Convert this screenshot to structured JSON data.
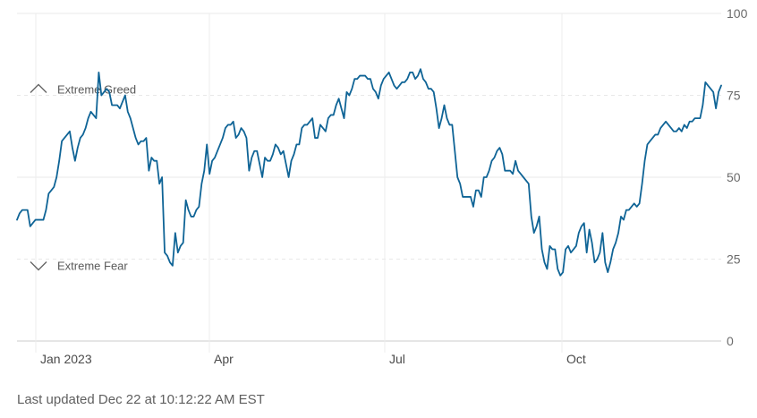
{
  "chart_data": {
    "type": "line",
    "ylim": [
      0,
      100
    ],
    "y_ticks": [
      0,
      25,
      50,
      75,
      100
    ],
    "x_tick_labels": [
      "Jan 2023",
      "Apr",
      "Jul",
      "Oct"
    ],
    "grid": true,
    "line_color": "#0f6496",
    "annotations": [
      {
        "label": "Extreme Greed",
        "y": 75,
        "icon": "chevron-up-icon"
      },
      {
        "label": "Extreme Fear",
        "y": 25,
        "icon": "chevron-down-icon"
      }
    ],
    "series": [
      {
        "values": [
          37,
          39,
          40,
          40,
          40,
          35,
          36,
          37,
          37,
          37,
          37,
          40,
          45,
          46,
          47,
          50,
          55,
          61,
          62,
          63,
          64,
          59,
          55,
          59,
          62,
          63,
          65,
          68,
          70,
          69,
          68,
          82,
          75,
          76,
          77,
          76,
          72,
          72,
          72,
          71,
          73,
          75,
          70,
          68,
          65,
          62,
          60,
          61,
          61,
          62,
          52,
          56,
          55,
          55,
          48,
          50,
          27,
          26,
          24,
          23,
          33,
          27,
          29,
          30,
          43,
          40,
          38,
          38,
          40,
          41,
          48,
          52,
          60,
          51,
          55,
          56,
          58,
          60,
          62,
          65,
          66,
          66,
          67,
          62,
          63,
          65,
          64,
          62,
          52,
          56,
          58,
          58,
          54,
          50,
          56,
          55,
          55,
          57,
          60,
          59,
          57,
          58,
          54,
          50,
          55,
          57,
          60,
          60,
          65,
          66,
          66,
          67,
          68,
          62,
          62,
          66,
          65,
          64,
          68,
          69,
          69,
          72,
          74,
          71,
          68,
          76,
          75,
          77,
          80,
          80,
          81,
          81,
          81,
          80,
          80,
          77,
          76,
          74,
          78,
          80,
          81,
          82,
          80,
          78,
          77,
          78,
          79,
          79,
          80,
          82,
          82,
          80,
          81,
          83,
          80,
          79,
          77,
          77,
          76,
          71,
          65,
          68,
          72,
          68,
          66,
          66,
          58,
          50,
          48,
          44,
          44,
          44,
          44,
          41,
          46,
          46,
          44,
          50,
          50,
          52,
          55,
          56,
          58,
          59,
          57,
          52,
          52,
          52,
          51,
          55,
          52,
          51,
          50,
          49,
          48,
          38,
          33,
          35,
          38,
          28,
          24,
          22,
          29,
          28,
          28,
          22,
          20,
          21,
          28,
          29,
          27,
          28,
          29,
          33,
          35,
          36,
          27,
          34,
          30,
          24,
          25,
          27,
          33,
          24,
          21,
          24,
          28,
          30,
          33,
          38,
          37,
          40,
          40,
          41,
          42,
          41,
          42,
          48,
          55,
          60,
          61,
          62,
          63,
          63,
          65,
          66,
          67,
          66,
          65,
          64,
          64,
          65,
          64,
          66,
          65,
          67,
          67,
          68,
          68,
          68,
          72,
          79,
          78,
          77,
          76,
          71,
          76,
          78
        ]
      }
    ]
  },
  "footer": {
    "last_updated": "Last updated Dec 22 at 10:12:22 AM EST"
  }
}
